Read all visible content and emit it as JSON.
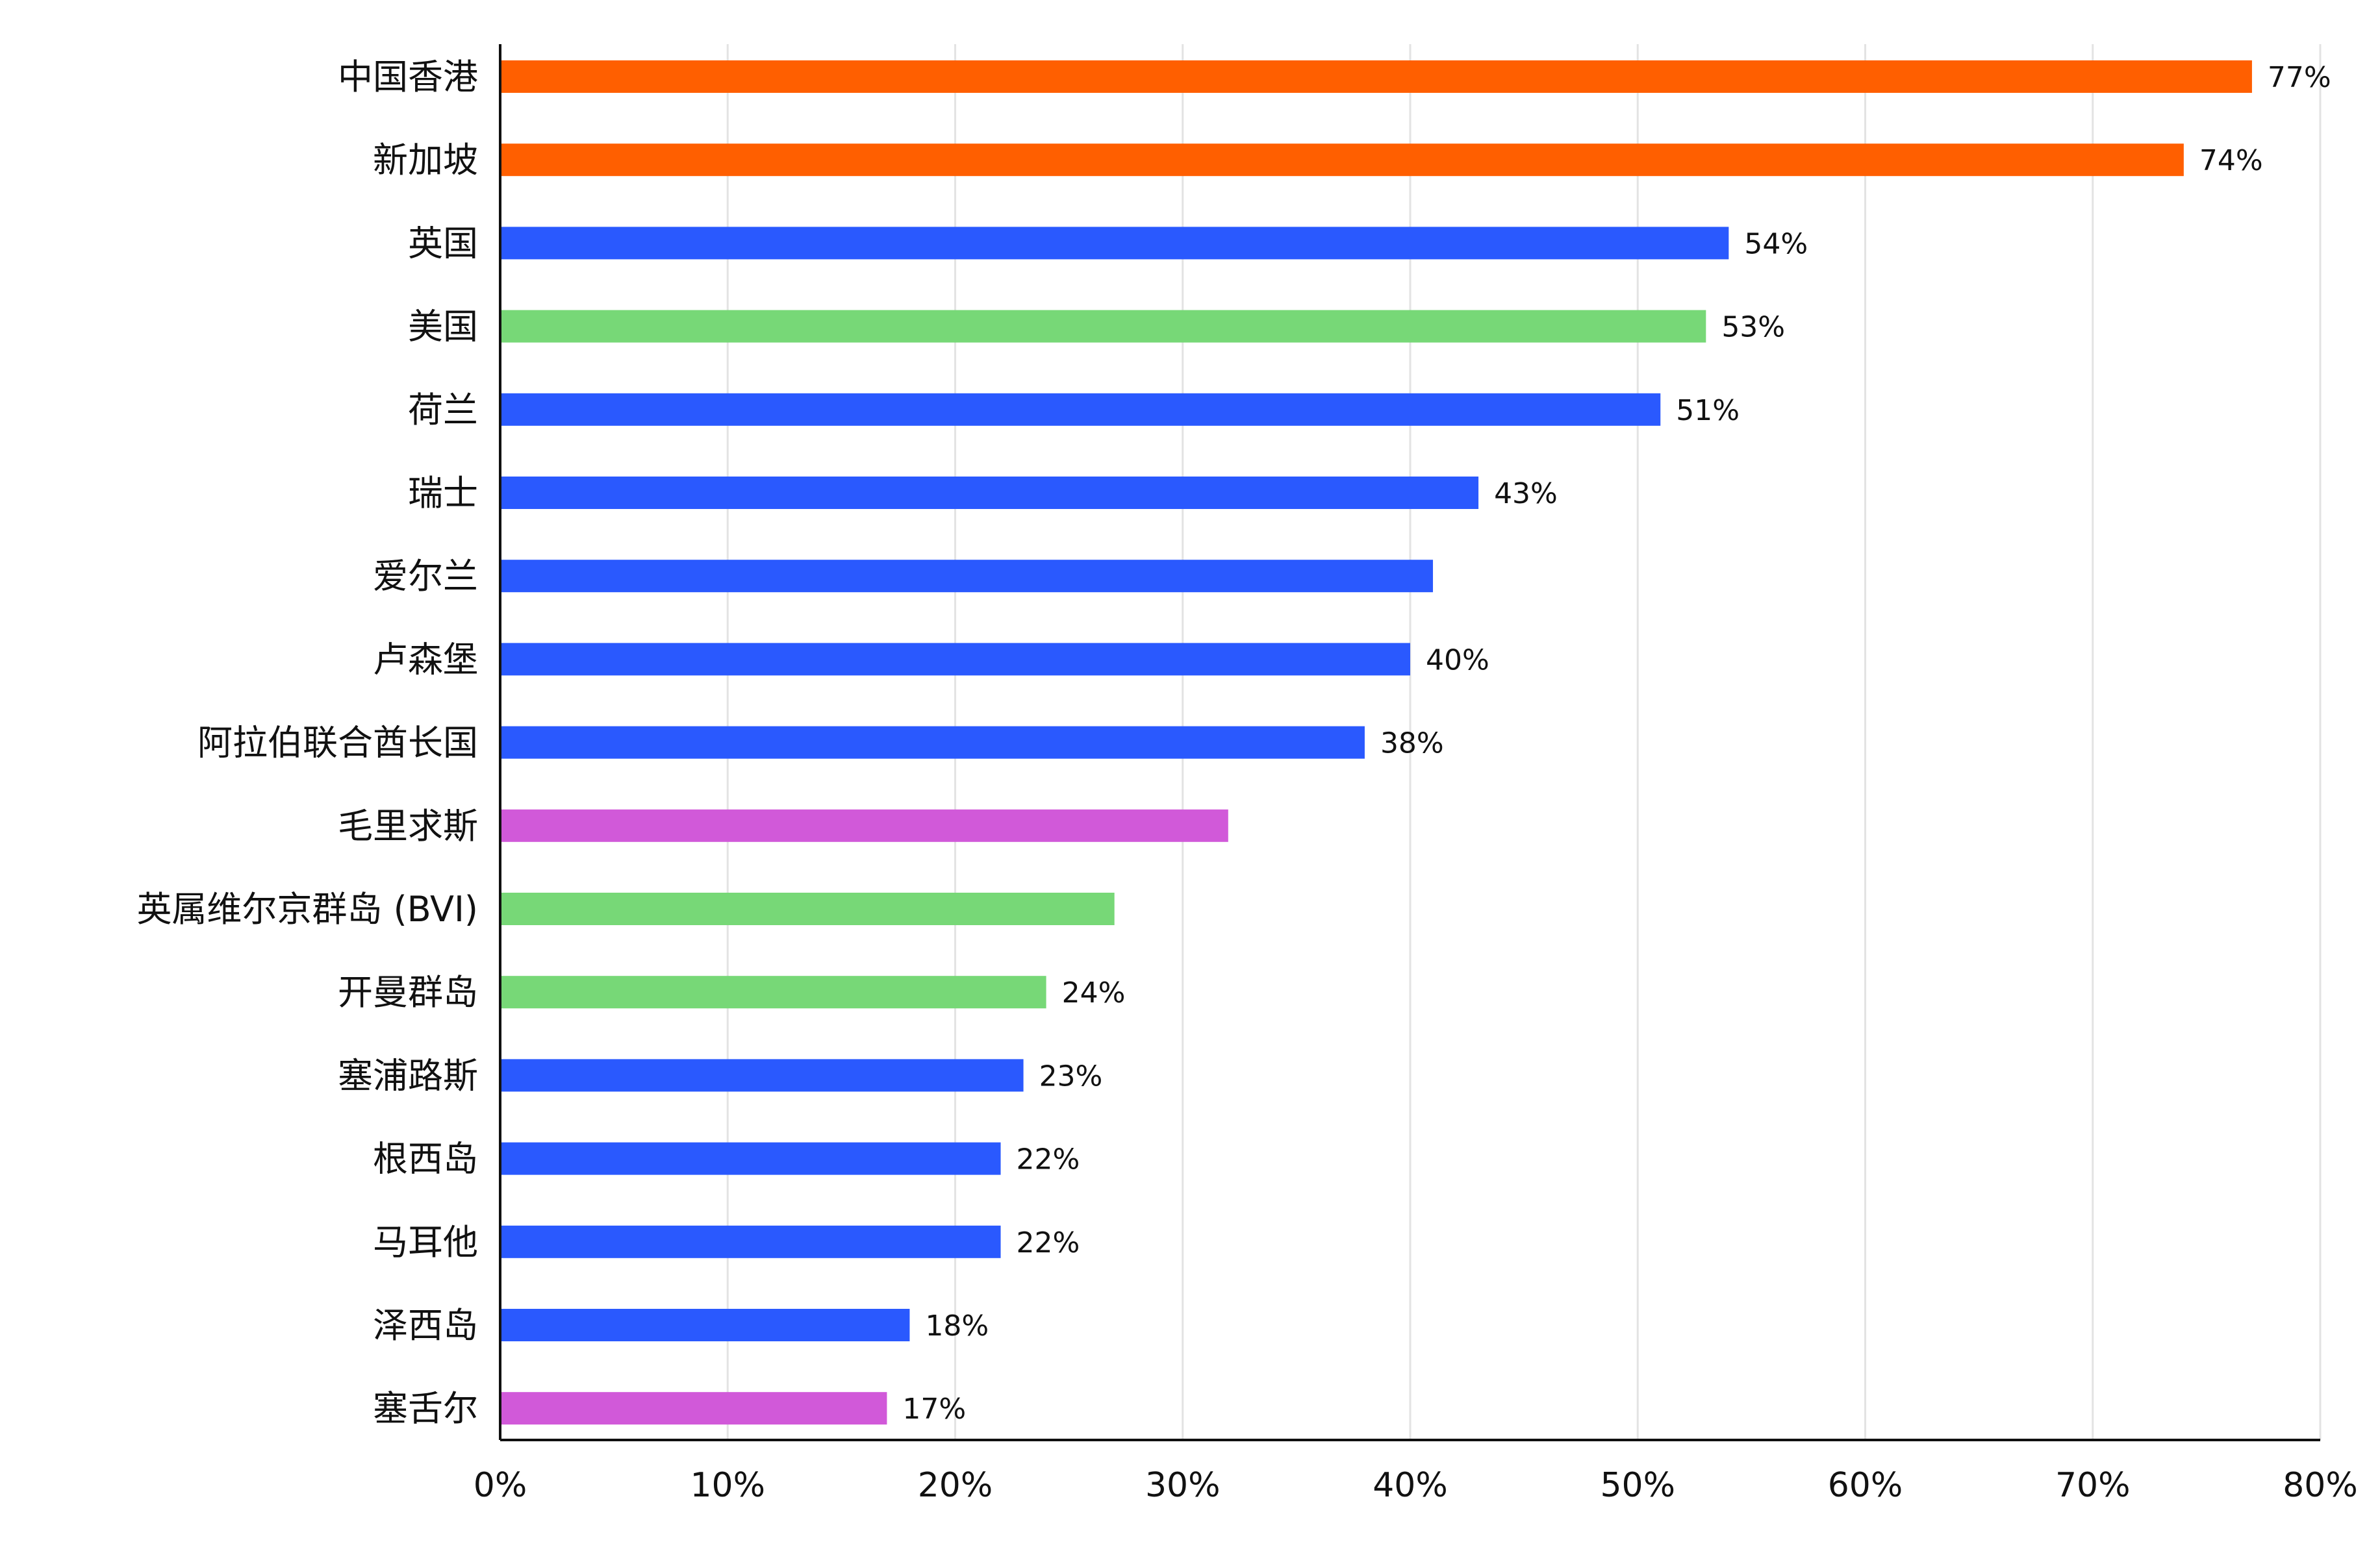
{
  "chart_data": {
    "type": "bar",
    "orientation": "horizontal",
    "title": "",
    "xlabel": "",
    "ylabel": "",
    "xlim": [
      0,
      80
    ],
    "grid": "vertical",
    "legend": "none",
    "colors": {
      "orange": "#FF5F00",
      "blue": "#2A59FE",
      "green": "#77D877",
      "purple": "#D159D9",
      "axis": "#111111",
      "grid": "#E3E3E3",
      "text": "#111111"
    },
    "x_ticks": [
      "0%",
      "10%",
      "20%",
      "30%",
      "40%",
      "50%",
      "60%",
      "70%",
      "80%"
    ],
    "x_tick_values": [
      0,
      10,
      20,
      30,
      40,
      50,
      60,
      70,
      80
    ],
    "bars": [
      {
        "category": "中国香港",
        "value": 77,
        "label": "77%",
        "color": "orange"
      },
      {
        "category": "新加坡",
        "value": 74,
        "label": "74%",
        "color": "orange"
      },
      {
        "category": "英国",
        "value": 54,
        "label": "54%",
        "color": "blue"
      },
      {
        "category": "美国",
        "value": 53,
        "label": "53%",
        "color": "green"
      },
      {
        "category": "荷兰",
        "value": 51,
        "label": "51%",
        "color": "blue"
      },
      {
        "category": "瑞士",
        "value": 43,
        "label": "43%",
        "color": "blue"
      },
      {
        "category": "爱尔兰",
        "value": 41,
        "label": "",
        "color": "blue"
      },
      {
        "category": "卢森堡",
        "value": 40,
        "label": "40%",
        "color": "blue"
      },
      {
        "category": "阿拉伯联合酋长国",
        "value": 38,
        "label": "38%",
        "color": "blue"
      },
      {
        "category": "毛里求斯",
        "value": 32,
        "label": "",
        "color": "purple"
      },
      {
        "category": "英属维尔京群岛 (BVI)",
        "value": 27,
        "label": "",
        "color": "green"
      },
      {
        "category": "开曼群岛",
        "value": 24,
        "label": "24%",
        "color": "green"
      },
      {
        "category": "塞浦路斯",
        "value": 23,
        "label": "23%",
        "color": "blue"
      },
      {
        "category": "根西岛",
        "value": 22,
        "label": "22%",
        "color": "blue"
      },
      {
        "category": "马耳他",
        "value": 22,
        "label": "22%",
        "color": "blue"
      },
      {
        "category": "泽西岛",
        "value": 18,
        "label": "18%",
        "color": "blue"
      },
      {
        "category": "塞舌尔",
        "value": 17,
        "label": "17%",
        "color": "purple"
      }
    ]
  }
}
